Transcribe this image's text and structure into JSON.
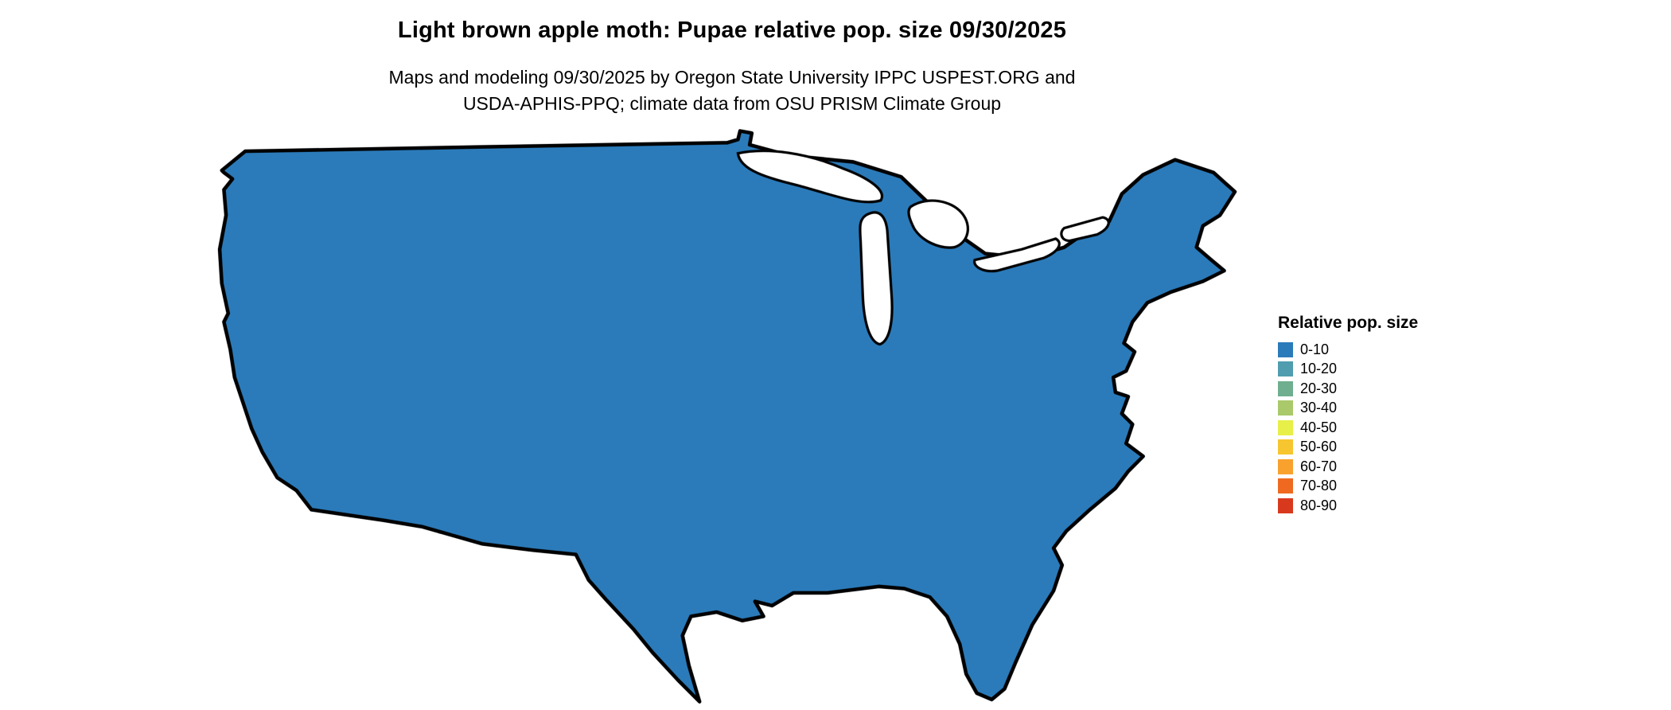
{
  "page": {
    "title": "Light brown apple moth: Pupae relative pop. size 09/30/2025",
    "subtitle": [
      "Maps and modeling 09/30/2025 by Oregon State University IPPC USPEST.ORG and",
      "USDA-APHIS-PPQ; climate data from OSU PRISM Climate Group"
    ]
  },
  "legend": {
    "title": "Relative pop. size",
    "items": [
      {
        "label": "0-10",
        "color": "#2b7bba"
      },
      {
        "label": "10-20",
        "color": "#4f9dae"
      },
      {
        "label": "20-30",
        "color": "#6fae8f"
      },
      {
        "label": "30-40",
        "color": "#a9c96a"
      },
      {
        "label": "40-50",
        "color": "#e7ef49"
      },
      {
        "label": "50-60",
        "color": "#f7c530"
      },
      {
        "label": "60-70",
        "color": "#f9a12d"
      },
      {
        "label": "70-80",
        "color": "#ef6a20"
      },
      {
        "label": "80-90",
        "color": "#d8391d"
      }
    ]
  },
  "map": {
    "region": "Contiguous United States",
    "base_color": "#2b7bba",
    "border_color": "#000000",
    "water_color": "#ffffff"
  }
}
